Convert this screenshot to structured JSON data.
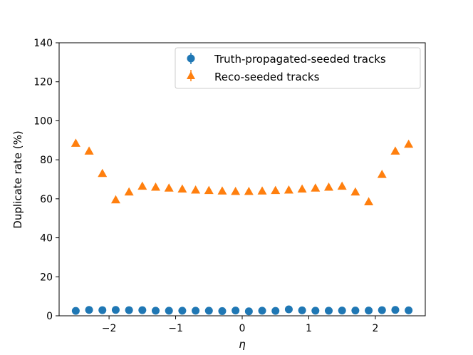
{
  "chart_data": {
    "type": "scatter",
    "title": "",
    "xlabel": "η",
    "ylabel": "Duplicate rate (%)",
    "xlim": [
      -2.75,
      2.75
    ],
    "ylim": [
      0,
      140
    ],
    "xticks": [
      -2,
      -1,
      0,
      1,
      2
    ],
    "xtick_labels": [
      "−2",
      "−1",
      "0",
      "1",
      "2"
    ],
    "yticks": [
      0,
      20,
      40,
      60,
      80,
      100,
      120,
      140
    ],
    "ytick_labels": [
      "0",
      "20",
      "40",
      "60",
      "80",
      "100",
      "120",
      "140"
    ],
    "grid": false,
    "legend_position": "top-right",
    "x": [
      -2.5,
      -2.3,
      -2.1,
      -1.9,
      -1.7,
      -1.5,
      -1.3,
      -1.1,
      -0.9,
      -0.7,
      -0.5,
      -0.3,
      -0.1,
      0.1,
      0.3,
      0.5,
      0.7,
      0.9,
      1.1,
      1.3,
      1.5,
      1.7,
      1.9,
      2.1,
      2.3,
      2.5
    ],
    "series": [
      {
        "name": "Truth-propagated-seeded tracks",
        "marker": "circle",
        "color": "#1f77b4",
        "values": [
          2.5,
          3.0,
          2.9,
          3.0,
          2.9,
          2.9,
          2.6,
          2.6,
          2.6,
          2.6,
          2.6,
          2.4,
          2.7,
          2.3,
          2.6,
          2.5,
          3.3,
          2.8,
          2.6,
          2.6,
          2.7,
          2.7,
          2.7,
          2.9,
          3.0,
          2.8
        ]
      },
      {
        "name": "Reco-seeded tracks",
        "marker": "triangle",
        "color": "#ff7f0e",
        "values": [
          88.5,
          84.5,
          73.0,
          59.5,
          63.5,
          66.5,
          66.0,
          65.5,
          65.0,
          64.5,
          64.3,
          64.0,
          63.8,
          63.8,
          64.0,
          64.3,
          64.5,
          65.0,
          65.5,
          66.0,
          66.5,
          63.5,
          58.5,
          72.5,
          84.5,
          88.0
        ]
      }
    ]
  }
}
